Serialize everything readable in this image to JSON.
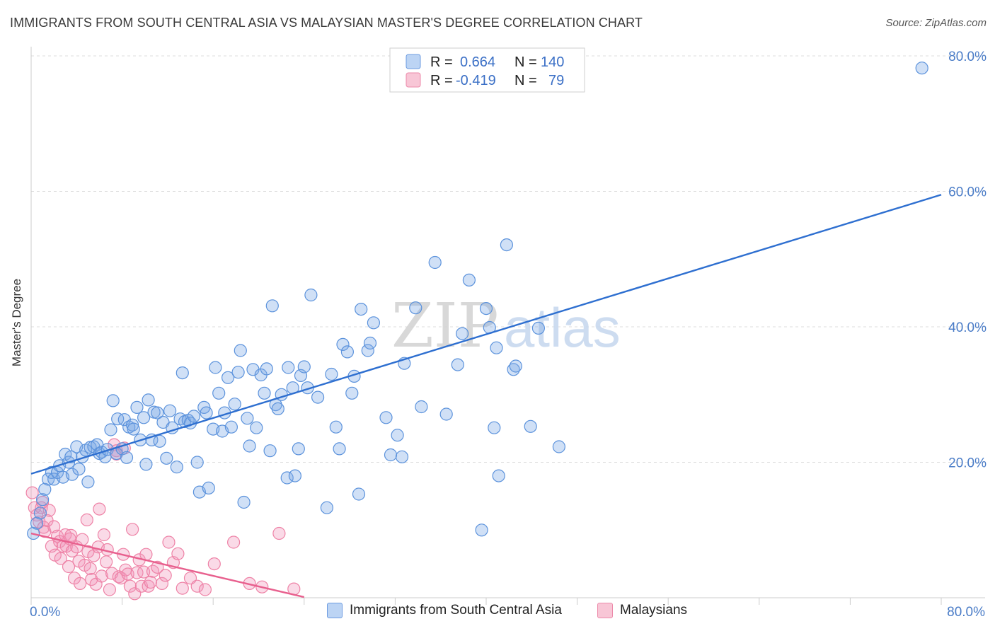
{
  "title": "IMMIGRANTS FROM SOUTH CENTRAL ASIA VS MALAYSIAN MASTER'S DEGREE CORRELATION CHART",
  "source": "Source: ZipAtlas.com",
  "watermark": {
    "zip": "ZIP",
    "atlas": "atlas"
  },
  "chart_data": {
    "type": "scatter",
    "title": "IMMIGRANTS FROM SOUTH CENTRAL ASIA VS MALAYSIAN MASTER'S DEGREE CORRELATION CHART",
    "xlabel": "",
    "ylabel": "Master's Degree",
    "xlim": [
      0,
      80
    ],
    "ylim": [
      0,
      80
    ],
    "x_tick_labels": [
      "0.0%",
      "80.0%"
    ],
    "y_ticks": [
      20,
      40,
      60,
      80
    ],
    "y_tick_labels": [
      "20.0%",
      "40.0%",
      "60.0%",
      "80.0%"
    ],
    "grid": true,
    "legend_placement": "top-center",
    "colors": {
      "blue": "#4a86d8",
      "pink": "#ee82a6",
      "blue_line": "#2e6fd0",
      "pink_line": "#e8608e"
    },
    "legend": [
      {
        "r_label": "R =",
        "r": "0.664",
        "n_label": "N =",
        "n": "140"
      },
      {
        "r_label": "R =",
        "r": "-0.419",
        "n_label": "N =",
        "n": "79"
      }
    ],
    "series": [
      {
        "name": "Immigrants from South Central Asia",
        "color": "#4a86d8",
        "trend": {
          "x": [
            0,
            80
          ],
          "y": [
            18.3,
            59.5
          ]
        },
        "points": [
          [
            0.2,
            9.5
          ],
          [
            0.5,
            11
          ],
          [
            0.8,
            12.5
          ],
          [
            1,
            14.5
          ],
          [
            1.2,
            16
          ],
          [
            1.5,
            17.5
          ],
          [
            1.8,
            18.5
          ],
          [
            2,
            17.5
          ],
          [
            2.3,
            18.5
          ],
          [
            2.5,
            19.5
          ],
          [
            2.8,
            17.8
          ],
          [
            3,
            21.2
          ],
          [
            3.3,
            20
          ],
          [
            3.5,
            20.8
          ],
          [
            3.6,
            18.2
          ],
          [
            4,
            22.3
          ],
          [
            4.2,
            19
          ],
          [
            4.5,
            20.8
          ],
          [
            4.8,
            21.8
          ],
          [
            5,
            17.1
          ],
          [
            5.2,
            22.2
          ],
          [
            5.5,
            22.3
          ],
          [
            5.8,
            22.6
          ],
          [
            6,
            21.3
          ],
          [
            6.2,
            21.5
          ],
          [
            6.5,
            20.8
          ],
          [
            6.7,
            21.9
          ],
          [
            7,
            24.8
          ],
          [
            7.2,
            29.1
          ],
          [
            7.5,
            21.3
          ],
          [
            7.6,
            26.4
          ],
          [
            8,
            22
          ],
          [
            8.2,
            26.3
          ],
          [
            8.4,
            20.7
          ],
          [
            8.6,
            25.2
          ],
          [
            8.9,
            25.5
          ],
          [
            9,
            24.9
          ],
          [
            9.3,
            28.1
          ],
          [
            9.6,
            23.3
          ],
          [
            9.9,
            26.6
          ],
          [
            10.1,
            19.7
          ],
          [
            10.3,
            29.2
          ],
          [
            10.6,
            23.3
          ],
          [
            10.8,
            27.4
          ],
          [
            11.1,
            27.3
          ],
          [
            11.3,
            23.1
          ],
          [
            11.6,
            25.9
          ],
          [
            11.9,
            20.6
          ],
          [
            12.2,
            27.6
          ],
          [
            12.4,
            25.1
          ],
          [
            12.8,
            19.3
          ],
          [
            13.1,
            26.4
          ],
          [
            13.3,
            33.2
          ],
          [
            13.5,
            26
          ],
          [
            13.8,
            26.2
          ],
          [
            14,
            25.8
          ],
          [
            14.3,
            26.8
          ],
          [
            14.6,
            20
          ],
          [
            14.8,
            15.6
          ],
          [
            15.2,
            28.1
          ],
          [
            15.4,
            27.3
          ],
          [
            15.6,
            16.2
          ],
          [
            16,
            24.9
          ],
          [
            16.2,
            34
          ],
          [
            16.5,
            30.2
          ],
          [
            16.8,
            24.6
          ],
          [
            17,
            27.3
          ],
          [
            17.3,
            32.5
          ],
          [
            17.6,
            25.2
          ],
          [
            17.9,
            28.6
          ],
          [
            18.2,
            33.3
          ],
          [
            18.4,
            36.5
          ],
          [
            18.7,
            14.1
          ],
          [
            19,
            26.5
          ],
          [
            19.2,
            22.4
          ],
          [
            19.5,
            33.7
          ],
          [
            19.8,
            25.1
          ],
          [
            20.2,
            32.9
          ],
          [
            20.5,
            30.2
          ],
          [
            20.7,
            33.8
          ],
          [
            21,
            21.7
          ],
          [
            21.2,
            43.1
          ],
          [
            21.5,
            28.5
          ],
          [
            21.7,
            27.9
          ],
          [
            22,
            30
          ],
          [
            22.5,
            17.7
          ],
          [
            22.6,
            34
          ],
          [
            23,
            31
          ],
          [
            23.2,
            18
          ],
          [
            23.5,
            22
          ],
          [
            23.7,
            32.8
          ],
          [
            24,
            34.1
          ],
          [
            24.3,
            31
          ],
          [
            24.6,
            44.7
          ],
          [
            25.2,
            29.6
          ],
          [
            26,
            13.3
          ],
          [
            26.4,
            33
          ],
          [
            26.8,
            25.2
          ],
          [
            27.1,
            22
          ],
          [
            27.4,
            37.4
          ],
          [
            27.8,
            36.3
          ],
          [
            28.2,
            30.2
          ],
          [
            28.4,
            32.7
          ],
          [
            28.8,
            15.3
          ],
          [
            29,
            42.6
          ],
          [
            29.6,
            36.5
          ],
          [
            29.8,
            37.6
          ],
          [
            30.1,
            40.6
          ],
          [
            31.2,
            26.6
          ],
          [
            31.6,
            21.1
          ],
          [
            32.2,
            24
          ],
          [
            32.6,
            20.8
          ],
          [
            32.8,
            34.6
          ],
          [
            33.8,
            42.8
          ],
          [
            34.3,
            28.2
          ],
          [
            35.5,
            49.5
          ],
          [
            36.5,
            27.1
          ],
          [
            37.5,
            34.4
          ],
          [
            37.9,
            39
          ],
          [
            38.5,
            46.9
          ],
          [
            39.6,
            10
          ],
          [
            40,
            42.7
          ],
          [
            40.3,
            39.9
          ],
          [
            40.7,
            25.1
          ],
          [
            40.9,
            36.9
          ],
          [
            41.1,
            18
          ],
          [
            41.8,
            52.1
          ],
          [
            42.4,
            33.7
          ],
          [
            42.6,
            34.2
          ],
          [
            43.9,
            25.3
          ],
          [
            44.6,
            39.8
          ],
          [
            46.4,
            22.3
          ],
          [
            78.3,
            78.2
          ]
        ]
      },
      {
        "name": "Malaysians",
        "color": "#ee82a6",
        "trend": {
          "x": [
            0,
            24
          ],
          "y": [
            9.5,
            0.1
          ]
        },
        "points": [
          [
            0.1,
            15.5
          ],
          [
            0.3,
            13.3
          ],
          [
            0.5,
            12.2
          ],
          [
            0.7,
            11.2
          ],
          [
            0.9,
            13.3
          ],
          [
            1.1,
            10.4
          ],
          [
            1.2,
            9.8
          ],
          [
            1.4,
            11.4
          ],
          [
            1.6,
            12.9
          ],
          [
            1.8,
            7.6
          ],
          [
            2,
            10.5
          ],
          [
            2.1,
            6.3
          ],
          [
            2.3,
            9.1
          ],
          [
            2.5,
            8.3
          ],
          [
            2.6,
            5.8
          ],
          [
            2.8,
            7.6
          ],
          [
            3,
            9.3
          ],
          [
            3.1,
            7.6
          ],
          [
            3.3,
            4.6
          ],
          [
            3.5,
            9.2
          ],
          [
            3.6,
            6.9
          ],
          [
            3.8,
            2.9
          ],
          [
            4,
            7.5
          ],
          [
            4.2,
            5.4
          ],
          [
            4.3,
            2.1
          ],
          [
            4.5,
            8.6
          ],
          [
            4.7,
            4.8
          ],
          [
            4.9,
            11.5
          ],
          [
            5,
            6.8
          ],
          [
            5.2,
            4.3
          ],
          [
            5.3,
            2.7
          ],
          [
            5.5,
            6.2
          ],
          [
            5.7,
            2
          ],
          [
            5.9,
            7.5
          ],
          [
            6,
            13.1
          ],
          [
            6.2,
            3.2
          ],
          [
            6.4,
            9.3
          ],
          [
            6.6,
            5.3
          ],
          [
            6.7,
            7.1
          ],
          [
            6.9,
            1.2
          ],
          [
            7.1,
            3.6
          ],
          [
            7.3,
            22.6
          ],
          [
            7.5,
            21.7
          ],
          [
            7.7,
            3.1
          ],
          [
            7.9,
            2.9
          ],
          [
            8.1,
            6.4
          ],
          [
            8.3,
            4.1
          ],
          [
            8.5,
            3.5
          ],
          [
            8.7,
            1.7
          ],
          [
            8.9,
            10.1
          ],
          [
            9.1,
            0.6
          ],
          [
            9.3,
            3.7
          ],
          [
            9.5,
            5.6
          ],
          [
            9.7,
            1.7
          ],
          [
            9.9,
            3.8
          ],
          [
            10.1,
            6.4
          ],
          [
            10.3,
            1.7
          ],
          [
            10.5,
            2.3
          ],
          [
            10.7,
            3.9
          ],
          [
            11.1,
            4.5
          ],
          [
            11.5,
            2.1
          ],
          [
            11.8,
            3.3
          ],
          [
            12.1,
            8.2
          ],
          [
            12.5,
            5.2
          ],
          [
            12.9,
            6.5
          ],
          [
            13.3,
            1.4
          ],
          [
            14,
            2.9
          ],
          [
            14.6,
            1.7
          ],
          [
            15.3,
            1.2
          ],
          [
            16.1,
            5
          ],
          [
            17.8,
            8.2
          ],
          [
            19.2,
            2.1
          ],
          [
            20.3,
            1.6
          ],
          [
            21.8,
            9.5
          ],
          [
            23.1,
            1.3
          ],
          [
            1,
            14.1
          ],
          [
            3.4,
            8.7
          ],
          [
            7.5,
            21.2
          ],
          [
            8.2,
            22.1
          ]
        ]
      }
    ]
  }
}
